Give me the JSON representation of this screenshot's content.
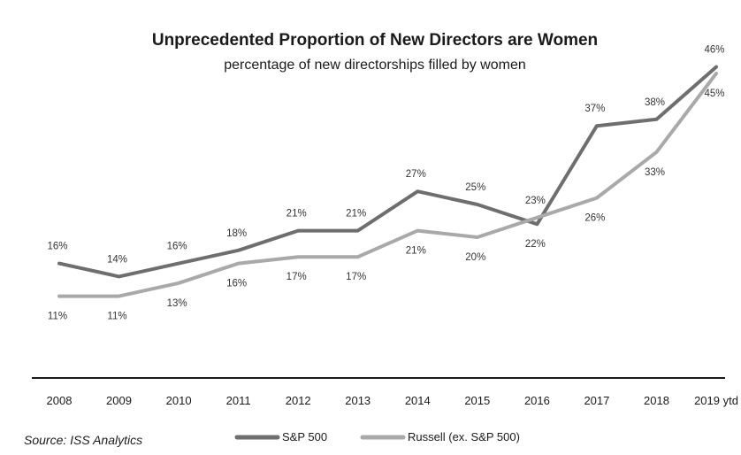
{
  "chart_data": {
    "type": "line",
    "title": "Unprecedented Proportion of New Directors are Women",
    "subtitle": "percentage of new directorships filled by women",
    "categories": [
      "2008",
      "2009",
      "2010",
      "2011",
      "2012",
      "2013",
      "2014",
      "2015",
      "2016",
      "2017",
      "2018",
      "2019 ytd"
    ],
    "series": [
      {
        "name": "S&P 500",
        "color": "#6e6e6e",
        "values": [
          16,
          14,
          16,
          18,
          21,
          21,
          27,
          25,
          22,
          37,
          38,
          46
        ],
        "labels": [
          "16%",
          "14%",
          "16%",
          "18%",
          "21%",
          "21%",
          "27%",
          "25%",
          "22%",
          "37%",
          "38%",
          "46%"
        ]
      },
      {
        "name": "Russell (ex. S&P 500)",
        "color": "#a9a9a9",
        "values": [
          11,
          11,
          13,
          16,
          17,
          17,
          21,
          20,
          23,
          26,
          33,
          45
        ],
        "labels": [
          "11%",
          "11%",
          "13%",
          "16%",
          "17%",
          "17%",
          "21%",
          "20%",
          "23%",
          "26%",
          "33%",
          "45%"
        ]
      }
    ],
    "xlabel": "",
    "ylabel": "",
    "ylim": [
      0,
      50
    ],
    "grid": false,
    "legend_position": "bottom",
    "source": "Source: ISS Analytics"
  }
}
